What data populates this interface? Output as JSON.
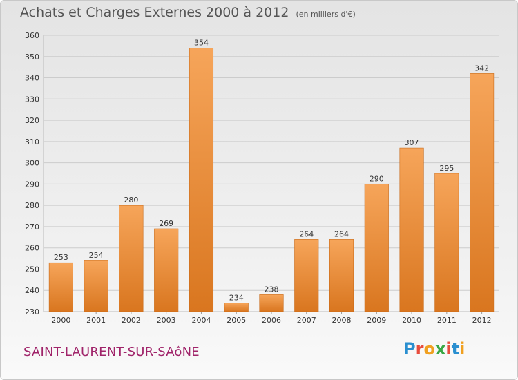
{
  "title": "Achats et Charges Externes 2000 à 2012",
  "subtitle": "(en milliers d'€)",
  "town": "SAINT-LAURENT-SUR-SAôNE",
  "logo": {
    "letters": [
      "P",
      "r",
      "o",
      "x",
      "i",
      "t",
      "i"
    ],
    "colors": [
      "#2a8fd0",
      "#e84c3d",
      "#f0a020",
      "#3aa745",
      "#e84c3d",
      "#2a8fd0",
      "#f0a020"
    ]
  },
  "colors": {
    "bar_top": "#f6a55a",
    "bar_bottom": "#d9761f",
    "grid": "#cccccc",
    "axis_text": "#333333"
  },
  "chart_data": {
    "type": "bar",
    "categories": [
      "2000",
      "2001",
      "2002",
      "2003",
      "2004",
      "2005",
      "2006",
      "2007",
      "2008",
      "2009",
      "2010",
      "2011",
      "2012"
    ],
    "values": [
      253,
      254,
      280,
      269,
      354,
      234,
      238,
      264,
      264,
      290,
      307,
      295,
      342
    ],
    "ylim": [
      230,
      360
    ],
    "yticks": [
      230,
      240,
      250,
      260,
      270,
      280,
      290,
      300,
      310,
      320,
      330,
      340,
      350,
      360
    ],
    "grid": true,
    "legend": "none"
  }
}
